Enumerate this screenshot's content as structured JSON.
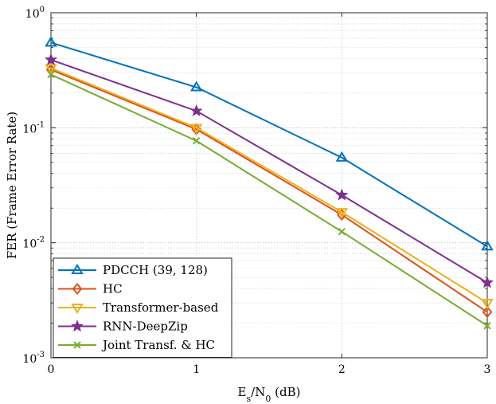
{
  "chart_data": {
    "type": "line",
    "title": "",
    "xlabel": {
      "base": "E",
      "sub1": "s",
      "sep": "/N",
      "sub2": "0",
      "unit": " (dB)"
    },
    "ylabel": "FER (Frame Error Rate)",
    "xscale": "linear",
    "yscale": "log",
    "xlim": [
      0,
      3
    ],
    "ylim": [
      0.001,
      1
    ],
    "grid": true,
    "legend_position": "bottom-left",
    "x": [
      0,
      1,
      2,
      3
    ],
    "x_ticks": [
      {
        "value": 0,
        "label": "0"
      },
      {
        "value": 1,
        "label": "1"
      },
      {
        "value": 2,
        "label": "2"
      },
      {
        "value": 3,
        "label": "3"
      }
    ],
    "y_ticks": [
      {
        "value": 1,
        "base": "10",
        "exp": "0"
      },
      {
        "value": 0.1,
        "base": "10",
        "exp": "-1"
      },
      {
        "value": 0.01,
        "base": "10",
        "exp": "-2"
      },
      {
        "value": 0.001,
        "base": "10",
        "exp": "-3"
      }
    ],
    "series": [
      {
        "name": "PDCCH (39, 128)",
        "color": "#0072BD",
        "marker": "triangle-up",
        "values": [
          0.55,
          0.225,
          0.055,
          0.0093
        ]
      },
      {
        "name": "HC",
        "color": "#D95319",
        "marker": "diamond",
        "values": [
          0.32,
          0.097,
          0.0175,
          0.0025
        ]
      },
      {
        "name": "Transformer-based",
        "color": "#EDB120",
        "marker": "triangle-down",
        "values": [
          0.33,
          0.1,
          0.0185,
          0.003
        ]
      },
      {
        "name": "RNN-DeepZip",
        "color": "#7E2F8E",
        "marker": "star",
        "values": [
          0.39,
          0.14,
          0.026,
          0.0045
        ]
      },
      {
        "name": "Joint Transf. & HC",
        "color": "#77AC30",
        "marker": "x",
        "values": [
          0.29,
          0.077,
          0.0125,
          0.0019
        ]
      }
    ]
  }
}
